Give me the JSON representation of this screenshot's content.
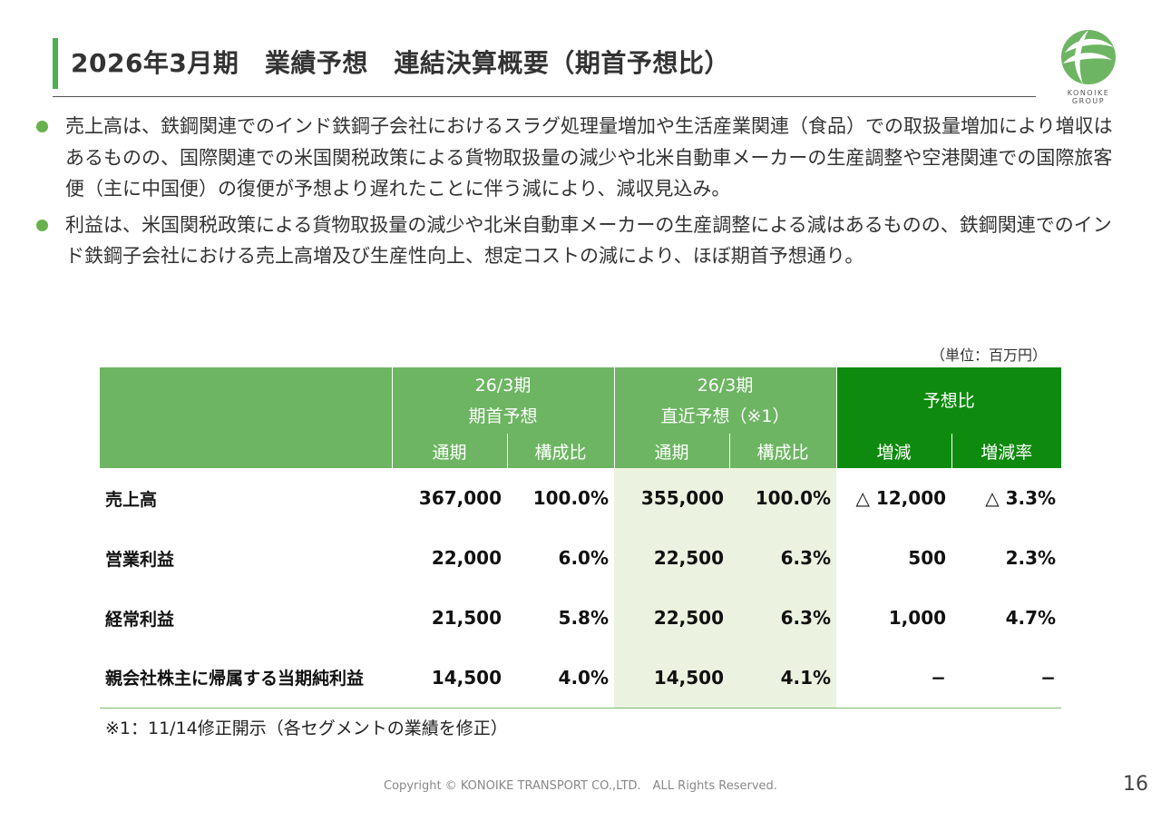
{
  "title": "2026年3月期　業績予想　連結決算概要（期首予想比）",
  "logo": {
    "text_line1": "KONOIKE",
    "text_line2": "GROUP",
    "brand_color": "#6db562"
  },
  "bullets": [
    "売上高は、鉄鋼関連でのインド鉄鋼子会社におけるスラグ処理量増加や生活産業関連（食品）での取扱量増加により増収はあるものの、国際関連での米国関税政策による貨物取扱量の減少や北米自動車メーカーの生産調整や空港関連での国際旅客便（主に中国便）の復便が予想より遅れたことに伴う減により、減収見込み。",
    "利益は、米国関税政策による貨物取扱量の減少や北米自動車メーカーの生産調整による減はあるものの、鉄鋼関連でのインド鉄鋼子会社における売上高増及び生産性向上、想定コストの減により、ほぼ期首予想通り。"
  ],
  "unit": "（単位：百万円）",
  "table": {
    "groups": [
      {
        "line1": "26/3期",
        "line2": "期首予想"
      },
      {
        "line1": "26/3期",
        "line2": "直近予想（※1）"
      },
      {
        "line1": "予想比"
      }
    ],
    "subheaders": [
      "通期",
      "構成比",
      "通期",
      "構成比",
      "増減",
      "増減率"
    ],
    "rows": [
      {
        "label": "売上高",
        "v1": "367,000",
        "r1": "100.0%",
        "v2": "355,000",
        "r2": "100.0%",
        "diff": "△ 12,000",
        "rate": "△ 3.3%"
      },
      {
        "label": "営業利益",
        "v1": "22,000",
        "r1": "6.0%",
        "v2": "22,500",
        "r2": "6.3%",
        "diff": "500",
        "rate": "2.3%"
      },
      {
        "label": "経常利益",
        "v1": "21,500",
        "r1": "5.8%",
        "v2": "22,500",
        "r2": "6.3%",
        "diff": "1,000",
        "rate": "4.7%"
      },
      {
        "label": "親会社株主に帰属する当期純利益",
        "v1": "14,500",
        "r1": "4.0%",
        "v2": "14,500",
        "r2": "4.1%",
        "diff": "−",
        "rate": "−"
      }
    ]
  },
  "footnote": "※1：11/14修正開示（各セグメントの業績を修正）",
  "copyright": "Copyright © KONOIKE TRANSPORT CO.,LTD.　ALL Rights Reserved.",
  "page_number": "16"
}
